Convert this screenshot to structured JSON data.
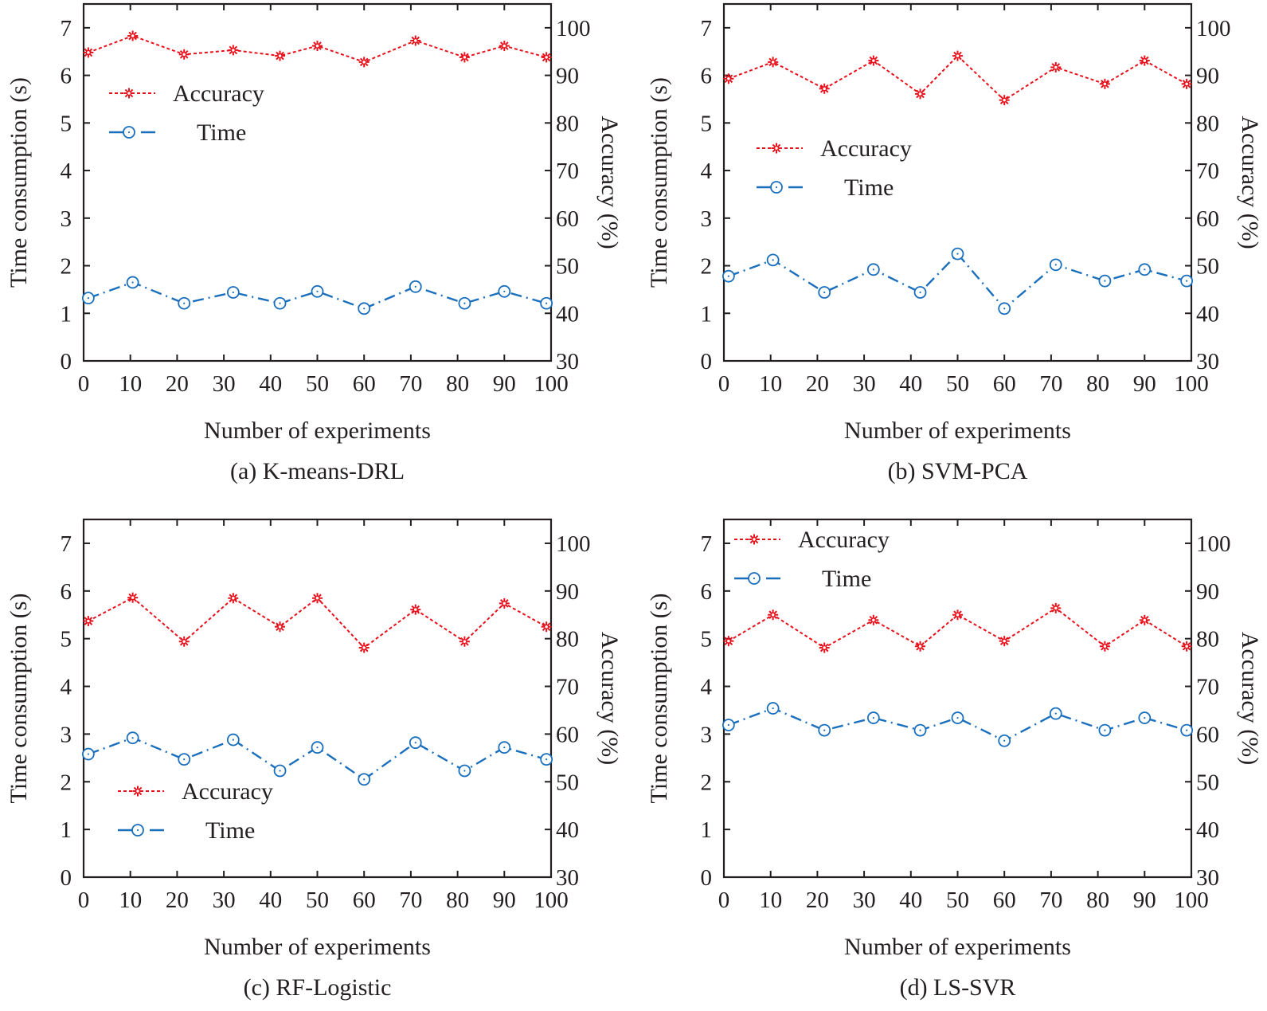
{
  "figure": {
    "colors": {
      "accuracy": "#e8111b",
      "time": "#1a6fbd",
      "axis": "#231f20"
    },
    "legend_labels": {
      "accuracy": "Accuracy",
      "time": "Time"
    }
  },
  "chart_data": [
    {
      "type": "line",
      "panel": "a",
      "caption": "(a) K-means-DRL",
      "xlabel": "Number of experiments",
      "ylabel_left": "Time consumption (s)",
      "ylabel_right": "Accuracy (%)",
      "xlim": [
        0,
        100
      ],
      "ylim_left": [
        0,
        7.5
      ],
      "ylim_right": [
        30,
        105
      ],
      "xticks": [
        0,
        10,
        20,
        30,
        40,
        50,
        60,
        70,
        80,
        90,
        100
      ],
      "yticks_left": [
        0,
        1,
        2,
        3,
        4,
        5,
        6,
        7
      ],
      "yticks_right": [
        30,
        40,
        50,
        60,
        70,
        80,
        90,
        100
      ],
      "grid": false,
      "legend": "upper-left",
      "x": [
        1,
        10.5,
        21.5,
        32,
        42,
        50,
        60,
        71,
        81.5,
        90,
        99
      ],
      "series": [
        {
          "name": "Accuracy",
          "axis": "right",
          "values": [
            94.8,
            98.3,
            94.4,
            95.3,
            94.1,
            96.2,
            92.8,
            97.3,
            93.8,
            96.2,
            93.8
          ]
        },
        {
          "name": "Time",
          "axis": "left",
          "values": [
            1.32,
            1.65,
            1.21,
            1.44,
            1.21,
            1.46,
            1.1,
            1.56,
            1.21,
            1.46,
            1.21
          ]
        }
      ]
    },
    {
      "type": "line",
      "panel": "b",
      "caption": "(b) SVM-PCA",
      "xlabel": "Number of experiments",
      "ylabel_left": "Time consumption (s)",
      "ylabel_right": "Accuracy (%)",
      "xlim": [
        0,
        100
      ],
      "ylim_left": [
        0,
        7.5
      ],
      "ylim_right": [
        30,
        105
      ],
      "xticks": [
        0,
        10,
        20,
        30,
        40,
        50,
        60,
        70,
        80,
        90,
        100
      ],
      "yticks_left": [
        0,
        1,
        2,
        3,
        4,
        5,
        6,
        7
      ],
      "yticks_right": [
        30,
        40,
        50,
        60,
        70,
        80,
        90,
        100
      ],
      "grid": false,
      "legend": "center-left",
      "x": [
        1,
        10.5,
        21.5,
        32,
        42,
        50,
        60,
        71,
        81.5,
        90,
        99
      ],
      "series": [
        {
          "name": "Accuracy",
          "axis": "right",
          "values": [
            89.3,
            92.8,
            87.2,
            93.1,
            86.1,
            94.1,
            84.8,
            91.7,
            88.2,
            93.1,
            88.2
          ]
        },
        {
          "name": "Time",
          "axis": "left",
          "values": [
            1.78,
            2.12,
            1.44,
            1.92,
            1.44,
            2.25,
            1.1,
            2.02,
            1.68,
            1.92,
            1.68
          ]
        }
      ]
    },
    {
      "type": "line",
      "panel": "c",
      "caption": "(c) RF-Logistic",
      "xlabel": "Number of experiments",
      "ylabel_left": "Time consumption (s)",
      "ylabel_right": "Accuracy (%)",
      "xlim": [
        0,
        100
      ],
      "ylim_left": [
        0,
        7.5
      ],
      "ylim_right": [
        30,
        105
      ],
      "xticks": [
        0,
        10,
        20,
        30,
        40,
        50,
        60,
        70,
        80,
        90,
        100
      ],
      "yticks_left": [
        0,
        1,
        2,
        3,
        4,
        5,
        6,
        7
      ],
      "yticks_right": [
        30,
        40,
        50,
        60,
        70,
        80,
        90,
        100
      ],
      "grid": false,
      "legend": "lower-left",
      "x": [
        1,
        10.5,
        21.5,
        32,
        42,
        50,
        60,
        71,
        81.5,
        90,
        99
      ],
      "series": [
        {
          "name": "Accuracy",
          "axis": "right",
          "values": [
            83.7,
            88.6,
            79.4,
            88.5,
            82.5,
            88.5,
            78.1,
            86.1,
            79.4,
            87.4,
            82.5
          ]
        },
        {
          "name": "Time",
          "axis": "left",
          "values": [
            2.58,
            2.92,
            2.47,
            2.88,
            2.23,
            2.72,
            2.05,
            2.82,
            2.23,
            2.72,
            2.47
          ]
        }
      ]
    },
    {
      "type": "line",
      "panel": "d",
      "caption": "(d) LS-SVR",
      "xlabel": "Number of experiments",
      "ylabel_left": "Time consumption (s)",
      "ylabel_right": "Accuracy (%)",
      "xlim": [
        0,
        100
      ],
      "ylim_left": [
        0,
        7.5
      ],
      "ylim_right": [
        30,
        105
      ],
      "xticks": [
        0,
        10,
        20,
        30,
        40,
        50,
        60,
        70,
        80,
        90,
        100
      ],
      "yticks_left": [
        0,
        1,
        2,
        3,
        4,
        5,
        6,
        7
      ],
      "yticks_right": [
        30,
        40,
        50,
        60,
        70,
        80,
        90,
        100
      ],
      "grid": false,
      "legend": "upper-left",
      "x": [
        1,
        10.5,
        21.5,
        32,
        42,
        50,
        60,
        71,
        81.5,
        90,
        99
      ],
      "series": [
        {
          "name": "Accuracy",
          "axis": "right",
          "values": [
            79.5,
            85.0,
            78.1,
            83.9,
            78.4,
            85.0,
            79.5,
            86.4,
            78.4,
            83.9,
            78.4
          ]
        },
        {
          "name": "Time",
          "axis": "left",
          "values": [
            3.19,
            3.54,
            3.08,
            3.34,
            3.08,
            3.34,
            2.86,
            3.43,
            3.08,
            3.34,
            3.08
          ]
        }
      ]
    }
  ]
}
